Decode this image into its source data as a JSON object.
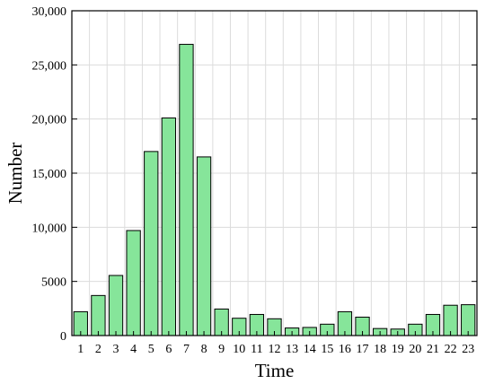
{
  "chart_data": {
    "type": "bar",
    "xlabel": "Time",
    "ylabel": "Number",
    "categories": [
      "1",
      "2",
      "3",
      "4",
      "5",
      "6",
      "7",
      "8",
      "9",
      "10",
      "11",
      "12",
      "13",
      "14",
      "15",
      "16",
      "17",
      "18",
      "19",
      "20",
      "21",
      "22",
      "23"
    ],
    "values": [
      2200,
      3700,
      5550,
      9700,
      17000,
      20100,
      26900,
      16500,
      2450,
      1600,
      1950,
      1550,
      700,
      750,
      1050,
      2200,
      1700,
      650,
      600,
      1050,
      1950,
      2800,
      2850
    ],
    "ylim": [
      0,
      30000
    ],
    "yticks": [
      0,
      5000,
      10000,
      15000,
      20000,
      25000,
      30000
    ],
    "ytick_labels": [
      "0",
      "5000",
      "10,000",
      "15,000",
      "20,000",
      "25,000",
      "30,000"
    ],
    "grid": true,
    "colors": {
      "bar_fill": "#86e59a",
      "bar_stroke": "#000000",
      "grid": "#dcdcdc"
    }
  }
}
